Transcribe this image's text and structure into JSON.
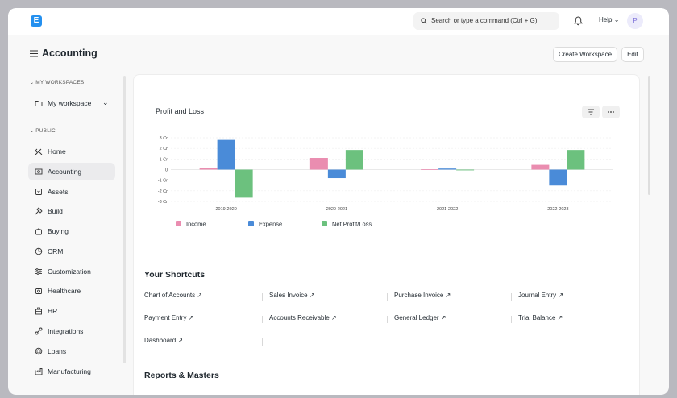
{
  "navbar": {
    "logo_letter": "E",
    "search_placeholder": "Search or type a command (Ctrl + G)",
    "help_label": "Help",
    "avatar_initial": "P"
  },
  "header": {
    "title": "Accounting",
    "create_workspace": "Create Workspace",
    "edit": "Edit"
  },
  "sidebar": {
    "my_workspaces_label": "MY WORKSPACES",
    "my_workspace": "My workspace",
    "public_label": "PUBLIC",
    "items": [
      {
        "label": "Home",
        "icon": "home-icon"
      },
      {
        "label": "Accounting",
        "icon": "accounting-icon"
      },
      {
        "label": "Assets",
        "icon": "assets-icon"
      },
      {
        "label": "Build",
        "icon": "build-icon"
      },
      {
        "label": "Buying",
        "icon": "buying-icon"
      },
      {
        "label": "CRM",
        "icon": "crm-icon"
      },
      {
        "label": "Customization",
        "icon": "customization-icon"
      },
      {
        "label": "Healthcare",
        "icon": "healthcare-icon"
      },
      {
        "label": "HR",
        "icon": "hr-icon"
      },
      {
        "label": "Integrations",
        "icon": "integrations-icon"
      },
      {
        "label": "Loans",
        "icon": "loans-icon"
      },
      {
        "label": "Manufacturing",
        "icon": "manufacturing-icon"
      }
    ]
  },
  "chart": {
    "title": "Profit and Loss"
  },
  "chart_data": {
    "type": "bar",
    "title": "Profit and Loss",
    "categories": [
      "2019-2020",
      "2020-2021",
      "2021-2022",
      "2022-2023"
    ],
    "y_ticks": [
      "3 Cr",
      "2 Cr",
      "1 Cr",
      "0",
      "-1 Cr",
      "-2 Cr",
      "-3 Cr"
    ],
    "ylim": [
      -3,
      3
    ],
    "ylabel": "",
    "xlabel": "",
    "series": [
      {
        "name": "Income",
        "color": "#ea8db0",
        "values": [
          0.15,
          1.1,
          0.03,
          0.45
        ]
      },
      {
        "name": "Expense",
        "color": "#4a8bd8",
        "values": [
          2.8,
          -0.8,
          0.1,
          -1.5
        ]
      },
      {
        "name": "Net Profit/Loss",
        "color": "#6cc17e",
        "values": [
          -2.65,
          1.85,
          -0.07,
          1.85
        ]
      }
    ],
    "legend_position": "bottom-left"
  },
  "shortcuts": {
    "title": "Your Shortcuts",
    "items": [
      "Chart of Accounts",
      "Sales Invoice",
      "Purchase Invoice",
      "Journal Entry",
      "Payment Entry",
      "Accounts Receivable",
      "General Ledger",
      "Trial Balance",
      "Dashboard"
    ]
  },
  "reports": {
    "title": "Reports & Masters"
  }
}
